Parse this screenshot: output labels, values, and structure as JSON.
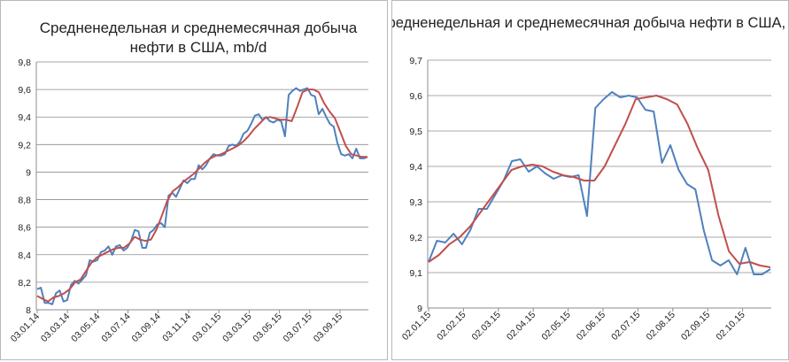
{
  "chart_data": [
    {
      "type": "line",
      "title_lines": [
        "Средненедельная и среднемесячная добыча",
        "нефти в США, mb/d"
      ],
      "xlabel": "",
      "ylabel": "",
      "ylim": [
        8,
        9.8
      ],
      "y_ticks": [
        "8",
        "8,2",
        "8,4",
        "8,6",
        "8,8",
        "9",
        "9,2",
        "9,4",
        "9,6",
        "9,8"
      ],
      "x_ticks": [
        "03.01.14",
        "03.03.14",
        "03.05.14",
        "03.07.14",
        "03.09.14",
        "03.11.14",
        "03.01.15",
        "03.03.15",
        "03.05.15",
        "03.07.15",
        "03.09.15"
      ],
      "grid": true,
      "legend": "none",
      "series": [
        {
          "color": "#4f81bd",
          "values": [
            8.15,
            8.16,
            8.05,
            8.05,
            8.04,
            8.12,
            8.14,
            8.06,
            8.07,
            8.18,
            8.21,
            8.19,
            8.22,
            8.25,
            8.36,
            8.35,
            8.36,
            8.42,
            8.43,
            8.46,
            8.4,
            8.46,
            8.47,
            8.43,
            8.45,
            8.5,
            8.58,
            8.57,
            8.45,
            8.45,
            8.56,
            8.58,
            8.62,
            8.63,
            8.6,
            8.83,
            8.85,
            8.82,
            8.88,
            8.94,
            8.92,
            8.95,
            8.95,
            9.05,
            9.02,
            9.05,
            9.1,
            9.13,
            9.12,
            9.12,
            9.13,
            9.19,
            9.2,
            9.19,
            9.22,
            9.28,
            9.3,
            9.35,
            9.41,
            9.42,
            9.38,
            9.4,
            9.37,
            9.36,
            9.38,
            9.37,
            9.26,
            9.56,
            9.59,
            9.61,
            9.59,
            9.6,
            9.61,
            9.56,
            9.55,
            9.42,
            9.46,
            9.4,
            9.35,
            9.33,
            9.21,
            9.13,
            9.12,
            9.13,
            9.1,
            9.17,
            9.1,
            9.1,
            9.11
          ]
        },
        {
          "color": "#c0504d",
          "values": [
            8.1,
            8.08,
            8.06,
            8.09,
            8.1,
            8.12,
            8.15,
            8.2,
            8.22,
            8.28,
            8.34,
            8.38,
            8.4,
            8.42,
            8.44,
            8.45,
            8.45,
            8.48,
            8.53,
            8.51,
            8.5,
            8.51,
            8.58,
            8.68,
            8.79,
            8.86,
            8.89,
            8.93,
            8.96,
            8.99,
            9.03,
            9.07,
            9.1,
            9.12,
            9.13,
            9.15,
            9.17,
            9.19,
            9.22,
            9.26,
            9.31,
            9.35,
            9.39,
            9.4,
            9.39,
            9.38,
            9.38,
            9.37,
            9.47,
            9.58,
            9.6,
            9.6,
            9.58,
            9.5,
            9.44,
            9.39,
            9.29,
            9.19,
            9.13,
            9.12,
            9.11,
            9.11
          ]
        }
      ]
    },
    {
      "type": "line",
      "title_lines": [
        "Средненедельная и среднемесячная добыча нефти в США, mb/d"
      ],
      "xlabel": "",
      "ylabel": "",
      "ylim": [
        9,
        9.7
      ],
      "y_ticks": [
        "9",
        "9,1",
        "9,2",
        "9,3",
        "9,4",
        "9,5",
        "9,6",
        "9,7"
      ],
      "x_ticks": [
        "02.01.15",
        "02.02.15",
        "02.03.15",
        "02.04.15",
        "02.05.15",
        "02.06.15",
        "02.07.15",
        "02.08.15",
        "02.09.15",
        "02.10.15"
      ],
      "grid": true,
      "legend": "none",
      "series": [
        {
          "color": "#4f81bd",
          "values": [
            9.13,
            9.19,
            9.185,
            9.21,
            9.18,
            9.22,
            9.28,
            9.28,
            9.32,
            9.36,
            9.415,
            9.42,
            9.385,
            9.4,
            9.38,
            9.365,
            9.375,
            9.37,
            9.375,
            9.26,
            9.565,
            9.59,
            9.61,
            9.595,
            9.6,
            9.595,
            9.56,
            9.555,
            9.41,
            9.46,
            9.39,
            9.35,
            9.335,
            9.22,
            9.135,
            9.12,
            9.135,
            9.095,
            9.17,
            9.095,
            9.095,
            9.11
          ]
        },
        {
          "color": "#c0504d",
          "values": [
            9.13,
            9.15,
            9.18,
            9.2,
            9.23,
            9.27,
            9.31,
            9.35,
            9.39,
            9.4,
            9.405,
            9.4,
            9.385,
            9.375,
            9.37,
            9.36,
            9.36,
            9.4,
            9.46,
            9.52,
            9.59,
            9.595,
            9.6,
            9.59,
            9.575,
            9.52,
            9.45,
            9.39,
            9.26,
            9.16,
            9.125,
            9.13,
            9.12,
            9.115
          ]
        }
      ]
    }
  ]
}
